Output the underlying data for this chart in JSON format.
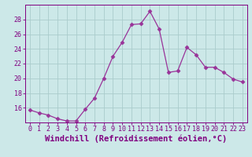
{
  "x": [
    0,
    1,
    2,
    3,
    4,
    5,
    6,
    7,
    8,
    9,
    10,
    11,
    12,
    13,
    14,
    15,
    16,
    17,
    18,
    19,
    20,
    21,
    22,
    23
  ],
  "y": [
    15.7,
    15.3,
    15.0,
    14.5,
    14.2,
    14.2,
    15.8,
    17.3,
    20.0,
    23.0,
    24.9,
    27.3,
    27.4,
    29.1,
    26.7,
    20.8,
    21.0,
    24.2,
    23.2,
    21.5,
    21.5,
    20.8,
    19.9,
    19.5
  ],
  "line_color": "#993399",
  "marker": "D",
  "marker_size": 2.5,
  "bg_color": "#cce8e8",
  "grid_color": "#aacccc",
  "xlabel": "Windchill (Refroidissement éolien,°C)",
  "ylim": [
    14,
    30
  ],
  "yticks": [
    16,
    18,
    20,
    22,
    24,
    26,
    28
  ],
  "xticks": [
    0,
    1,
    2,
    3,
    4,
    5,
    6,
    7,
    8,
    9,
    10,
    11,
    12,
    13,
    14,
    15,
    16,
    17,
    18,
    19,
    20,
    21,
    22,
    23
  ],
  "xtick_labels": [
    "0",
    "1",
    "2",
    "3",
    "4",
    "5",
    "6",
    "7",
    "8",
    "9",
    "10",
    "11",
    "12",
    "13",
    "14",
    "15",
    "16",
    "17",
    "18",
    "19",
    "20",
    "21",
    "22",
    "23"
  ],
  "font_color": "#800080",
  "tick_fontsize": 6,
  "xlabel_fontsize": 7.5
}
